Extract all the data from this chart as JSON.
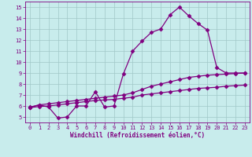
{
  "xlabel": "Windchill (Refroidissement éolien,°C)",
  "bg_color": "#c8ecec",
  "line_color": "#800080",
  "grid_color": "#a0c8c8",
  "xlim": [
    -0.5,
    23.5
  ],
  "ylim": [
    4.5,
    15.5
  ],
  "xticks": [
    0,
    1,
    2,
    3,
    4,
    5,
    6,
    7,
    8,
    9,
    10,
    11,
    12,
    13,
    14,
    15,
    16,
    17,
    18,
    19,
    20,
    21,
    22,
    23
  ],
  "yticks": [
    5,
    6,
    7,
    8,
    9,
    10,
    11,
    12,
    13,
    14,
    15
  ],
  "line1_x": [
    0,
    1,
    2,
    3,
    4,
    5,
    6,
    7,
    8,
    9,
    10,
    11,
    12,
    13,
    14,
    15,
    16,
    17,
    18,
    19,
    20,
    21,
    22,
    23
  ],
  "line1_y": [
    5.9,
    6.1,
    5.9,
    4.9,
    5.0,
    6.0,
    6.0,
    7.3,
    5.9,
    6.0,
    8.9,
    11.0,
    11.9,
    12.7,
    13.0,
    14.3,
    15.0,
    14.2,
    13.5,
    12.9,
    9.5,
    9.0,
    9.0,
    9.0
  ],
  "line2_x": [
    0,
    1,
    2,
    3,
    4,
    5,
    6,
    7,
    8,
    9,
    10,
    11,
    12,
    13,
    14,
    15,
    16,
    17,
    18,
    19,
    20,
    21,
    22,
    23
  ],
  "line2_y": [
    5.85,
    6.1,
    6.2,
    6.3,
    6.4,
    6.5,
    6.6,
    6.7,
    6.8,
    6.9,
    7.0,
    7.2,
    7.5,
    7.8,
    8.0,
    8.2,
    8.4,
    8.6,
    8.7,
    8.8,
    8.85,
    8.9,
    8.95,
    9.0
  ],
  "line3_x": [
    0,
    1,
    2,
    3,
    4,
    5,
    6,
    7,
    8,
    9,
    10,
    11,
    12,
    13,
    14,
    15,
    16,
    17,
    18,
    19,
    20,
    21,
    22,
    23
  ],
  "line3_y": [
    5.85,
    5.95,
    6.0,
    6.1,
    6.2,
    6.3,
    6.4,
    6.5,
    6.55,
    6.6,
    6.7,
    6.8,
    7.0,
    7.1,
    7.2,
    7.3,
    7.4,
    7.5,
    7.6,
    7.65,
    7.7,
    7.8,
    7.85,
    7.9
  ],
  "marker": "D",
  "markersize": 2.5,
  "linewidth": 0.9,
  "tick_fontsize": 5.0,
  "xlabel_fontsize": 5.5
}
